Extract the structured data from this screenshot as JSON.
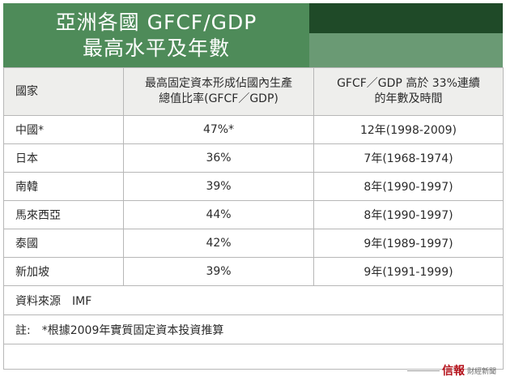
{
  "title": {
    "line1": "亞洲各國 GFCF/GDP",
    "line2": "最高水平及年數"
  },
  "columns": {
    "country": "國家",
    "ratio_line1": "最高固定資本形成佔國內生產",
    "ratio_line2": "總值比率(GFCF／GDP)",
    "years_line1": "GFCF／GDP 高於 33%連續",
    "years_line2": "的年數及時間"
  },
  "rows": [
    {
      "country": "中國*",
      "ratio": "47%*",
      "years": "12年(1998-2009)"
    },
    {
      "country": "日本",
      "ratio": "36%",
      "years": "7年(1968-1974)"
    },
    {
      "country": "南韓",
      "ratio": "39%",
      "years": "8年(1990-1997)"
    },
    {
      "country": "馬來西亞",
      "ratio": "44%",
      "years": "8年(1990-1997)"
    },
    {
      "country": "泰國",
      "ratio": "42%",
      "years": "9年(1989-1997)"
    },
    {
      "country": "新加坡",
      "ratio": "39%",
      "years": "9年(1991-1999)"
    }
  ],
  "source": "資料來源　IMF",
  "note": "註:　*根據2009年實質固定資本投資推算",
  "logo": {
    "main": "信報",
    "sub": "財經新聞"
  },
  "colors": {
    "title_bg": "#4e8b59",
    "dark_band": "#1f4a28",
    "header_row_bg": "#eeeeec",
    "logo_red": "#b5121b"
  }
}
